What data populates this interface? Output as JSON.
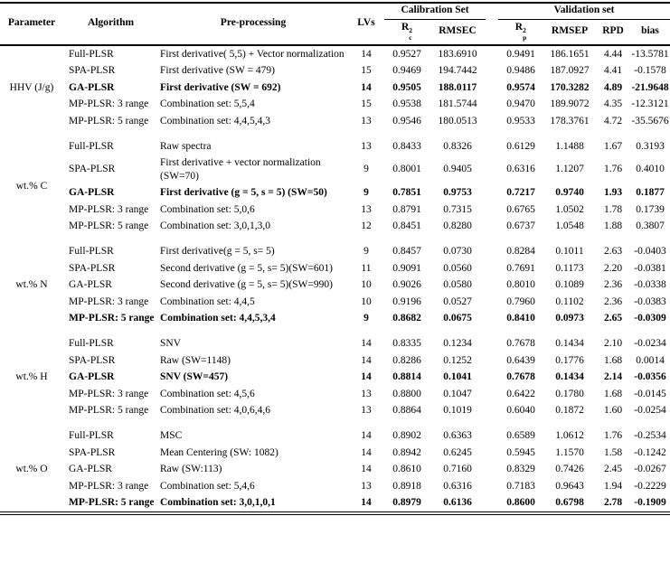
{
  "header": {
    "parameter": "Parameter",
    "algorithm": "Algorithm",
    "preprocessing": "Pre-processing",
    "lvs": "LVs",
    "calibration_group": "Calibration Set",
    "validation_group": "Validation set",
    "r2c": {
      "base": "R",
      "sup": "2",
      "sub": "c"
    },
    "rmsec": "RMSEC",
    "r2p": {
      "base": "R",
      "sup": "2",
      "sub": "p"
    },
    "rmsep": "RMSEP",
    "rpd": "RPD",
    "bias": "bias"
  },
  "groups": [
    {
      "parameter": "HHV (J/g)",
      "rows": [
        {
          "algorithm": "Full-PLSR",
          "preprocessing": "First derivative( 5,5) + Vector normalization",
          "lvs": "14",
          "r2c": "0.9527",
          "rmsec": "183.6910",
          "r2p": "0.9491",
          "rmsep": "186.1651",
          "rpd": "4.44",
          "bias": "-13.5781",
          "bold": false
        },
        {
          "algorithm": "SPA-PLSR",
          "preprocessing": "First derivative (SW = 479)",
          "lvs": "15",
          "r2c": "0.9469",
          "rmsec": "194.7442",
          "r2p": "0.9486",
          "rmsep": "187.0927",
          "rpd": "4.41",
          "bias": "-0.1578",
          "bold": false
        },
        {
          "algorithm": "GA-PLSR",
          "preprocessing": "First derivative (SW = 692)",
          "lvs": "14",
          "r2c": "0.9505",
          "rmsec": "188.0117",
          "r2p": "0.9574",
          "rmsep": "170.3282",
          "rpd": "4.89",
          "bias": "-21.9648",
          "bold": true
        },
        {
          "algorithm": "MP-PLSR: 3 range",
          "preprocessing": "Combination set: 5,5,4",
          "lvs": "15",
          "r2c": "0.9538",
          "rmsec": "181.5744",
          "r2p": "0.9470",
          "rmsep": "189.9072",
          "rpd": "4.35",
          "bias": "-12.3121",
          "bold": false
        },
        {
          "algorithm": "MP-PLSR: 5 range",
          "preprocessing": "Combination set: 4,4,5,4,3",
          "lvs": "13",
          "r2c": "0.9546",
          "rmsec": "180.0513",
          "r2p": "0.9533",
          "rmsep": "178.3761",
          "rpd": "4.72",
          "bias": "-35.5676",
          "bold": false
        }
      ]
    },
    {
      "parameter": "wt.% C",
      "rows": [
        {
          "algorithm": "Full-PLSR",
          "preprocessing": "Raw spectra",
          "lvs": "13",
          "r2c": "0.8433",
          "rmsec": "0.8326",
          "r2p": "0.6129",
          "rmsep": "1.1488",
          "rpd": "1.67",
          "bias": "0.3193",
          "bold": false
        },
        {
          "algorithm": "SPA-PLSR",
          "preprocessing": "First derivative + vector normalization (SW=70)",
          "lvs": "9",
          "r2c": "0.8001",
          "rmsec": "0.9405",
          "r2p": "0.6316",
          "rmsep": "1.1207",
          "rpd": "1.76",
          "bias": "0.4010",
          "bold": false
        },
        {
          "algorithm": "GA-PLSR",
          "preprocessing": "First derivative (g = 5, s = 5) (SW=50)",
          "lvs": "9",
          "r2c": "0.7851",
          "rmsec": "0.9753",
          "r2p": "0.7217",
          "rmsep": "0.9740",
          "rpd": "1.93",
          "bias": "0.1877",
          "bold": true
        },
        {
          "algorithm": "MP-PLSR: 3 range",
          "preprocessing": "Combination set:  5,0,6",
          "lvs": "13",
          "r2c": "0.8791",
          "rmsec": "0.7315",
          "r2p": "0.6765",
          "rmsep": "1.0502",
          "rpd": "1.78",
          "bias": "0.1739",
          "bold": false
        },
        {
          "algorithm": "MP-PLSR: 5 range",
          "preprocessing": "Combination set:  3,0,1,3,0",
          "lvs": "12",
          "r2c": "0.8451",
          "rmsec": "0.8280",
          "r2p": "0.6737",
          "rmsep": "1.0548",
          "rpd": "1.88",
          "bias": "0.3807",
          "bold": false
        }
      ]
    },
    {
      "parameter": "wt.% N",
      "rows": [
        {
          "algorithm": "Full-PLSR",
          "preprocessing": "First derivative(g = 5, s= 5)",
          "lvs": "9",
          "r2c": "0.8457",
          "rmsec": "0.0730",
          "r2p": "0.8284",
          "rmsep": "0.1011",
          "rpd": "2.63",
          "bias": "-0.0403",
          "bold": false
        },
        {
          "algorithm": "SPA-PLSR",
          "preprocessing": "Second derivative (g = 5, s= 5)(SW=601)",
          "lvs": "11",
          "r2c": "0.9091",
          "rmsec": "0.0560",
          "r2p": "0.7691",
          "rmsep": "0.1173",
          "rpd": "2.20",
          "bias": "-0.0381",
          "bold": false
        },
        {
          "algorithm": "GA-PLSR",
          "preprocessing": "Second derivative (g = 5, s= 5)(SW=990)",
          "lvs": "10",
          "r2c": "0.9026",
          "rmsec": "0.0580",
          "r2p": "0.8010",
          "rmsep": "0.1089",
          "rpd": "2.36",
          "bias": "-0.0338",
          "bold": false
        },
        {
          "algorithm": "MP-PLSR: 3 range",
          "preprocessing": "Combination set: 4,4,5",
          "lvs": "10",
          "r2c": "0.9196",
          "rmsec": "0.0527",
          "r2p": "0.7960",
          "rmsep": "0.1102",
          "rpd": "2.36",
          "bias": "-0.0383",
          "bold": false
        },
        {
          "algorithm": "MP-PLSR: 5 range",
          "preprocessing": "Combination set: 4,4,5,3,4",
          "lvs": "9",
          "r2c": "0.8682",
          "rmsec": "0.0675",
          "r2p": "0.8410",
          "rmsep": "0.0973",
          "rpd": "2.65",
          "bias": "-0.0309",
          "bold": true
        }
      ]
    },
    {
      "parameter": "wt.% H",
      "rows": [
        {
          "algorithm": "Full-PLSR",
          "preprocessing": "SNV",
          "lvs": "14",
          "r2c": "0.8335",
          "rmsec": "0.1234",
          "r2p": "0.7678",
          "rmsep": "0.1434",
          "rpd": "2.10",
          "bias": "-0.0234",
          "bold": false
        },
        {
          "algorithm": "SPA-PLSR",
          "preprocessing": "Raw (SW=1148)",
          "lvs": "14",
          "r2c": "0.8286",
          "rmsec": "0.1252",
          "r2p": "0.6439",
          "rmsep": "0.1776",
          "rpd": "1.68",
          "bias": "0.0014",
          "bold": false
        },
        {
          "algorithm": "GA-PLSR",
          "preprocessing": "SNV (SW=457)",
          "lvs": "14",
          "r2c": "0.8814",
          "rmsec": "0.1041",
          "r2p": "0.7678",
          "rmsep": "0.1434",
          "rpd": "2.14",
          "bias": "-0.0356",
          "bold": true
        },
        {
          "algorithm": "MP-PLSR: 3 range",
          "preprocessing": "Combination set: 4,5,6",
          "lvs": "13",
          "r2c": "0.8800",
          "rmsec": "0.1047",
          "r2p": "0.6422",
          "rmsep": "0.1780",
          "rpd": "1.68",
          "bias": "-0.0145",
          "bold": false
        },
        {
          "algorithm": "MP-PLSR: 5 range",
          "preprocessing": "Combination set: 4,0,6,4,6",
          "lvs": "13",
          "r2c": "0.8864",
          "rmsec": "0.1019",
          "r2p": "0.6040",
          "rmsep": "0.1872",
          "rpd": "1.60",
          "bias": "-0.0254",
          "bold": false
        }
      ]
    },
    {
      "parameter": "wt.% O",
      "rows": [
        {
          "algorithm": "Full-PLSR",
          "preprocessing": "MSC",
          "lvs": "14",
          "r2c": "0.8902",
          "rmsec": "0.6363",
          "r2p": "0.6589",
          "rmsep": "1.0612",
          "rpd": "1.76",
          "bias": "-0.2534",
          "bold": false
        },
        {
          "algorithm": "SPA-PLSR",
          "preprocessing": "Mean Centering (SW: 1082)",
          "lvs": "14",
          "r2c": "0.8942",
          "rmsec": "0.6245",
          "r2p": "0.5945",
          "rmsep": "1.1570",
          "rpd": "1.58",
          "bias": "-0.1242",
          "bold": false
        },
        {
          "algorithm": "GA-PLSR",
          "preprocessing": "Raw (SW:113)",
          "lvs": "14",
          "r2c": "0.8610",
          "rmsec": "0.7160",
          "r2p": "0.8329",
          "rmsep": "0.7426",
          "rpd": "2.45",
          "bias": "-0.0267",
          "bold": false
        },
        {
          "algorithm": "MP-PLSR: 3 range",
          "preprocessing": "Combination set:  5,4,6",
          "lvs": "13",
          "r2c": "0.8918",
          "rmsec": "0.6316",
          "r2p": "0.7183",
          "rmsep": "0.9643",
          "rpd": "1.94",
          "bias": "-0.2229",
          "bold": false
        },
        {
          "algorithm": "MP-PLSR: 5 range",
          "preprocessing": "Combination set: 3,0,1,0,1",
          "lvs": "14",
          "r2c": "0.8979",
          "rmsec": "0.6136",
          "r2p": "0.8600",
          "rmsep": "0.6798",
          "rpd": "2.78",
          "bias": "-0.1909",
          "bold": true
        }
      ]
    }
  ]
}
